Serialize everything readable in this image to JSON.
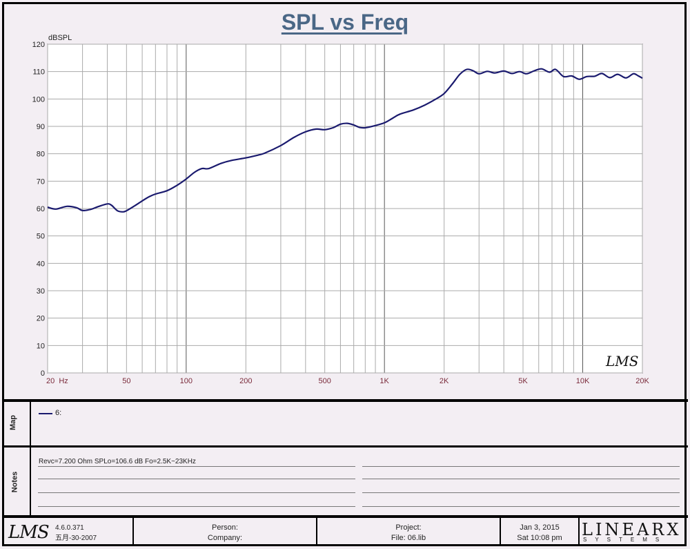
{
  "title": "SPL vs Freq",
  "chart_data": {
    "type": "line",
    "title": "SPL vs Freq",
    "ylabel": "dBSPL",
    "xlabel": "",
    "xscale": "log",
    "xlim": [
      20,
      20000
    ],
    "ylim": [
      0,
      120
    ],
    "yticks": [
      0,
      10,
      20,
      30,
      40,
      50,
      60,
      70,
      80,
      90,
      100,
      110,
      120
    ],
    "xtick_values": [
      20,
      50,
      100,
      200,
      500,
      1000,
      2000,
      5000,
      10000,
      20000
    ],
    "xtick_labels": [
      "20  Hz",
      "50",
      "100",
      "200",
      "500",
      "1K",
      "2K",
      "5K",
      "10K",
      "20K"
    ],
    "grid": true,
    "series": [
      {
        "name": "6:",
        "color": "#1a1a6e",
        "x": [
          20,
          22,
          25,
          28,
          30,
          33,
          36,
          40,
          42,
          45,
          48,
          50,
          55,
          60,
          65,
          70,
          80,
          90,
          100,
          110,
          120,
          130,
          150,
          170,
          200,
          230,
          250,
          300,
          350,
          400,
          450,
          500,
          550,
          600,
          650,
          700,
          750,
          800,
          900,
          1000,
          1100,
          1200,
          1400,
          1600,
          1800,
          2000,
          2200,
          2400,
          2600,
          2800,
          3000,
          3300,
          3600,
          4000,
          4400,
          4800,
          5200,
          5700,
          6200,
          6800,
          7300,
          8000,
          8800,
          9600,
          10500,
          11500,
          12500,
          13700,
          15000,
          16500,
          18000,
          19000,
          20000
        ],
        "y": [
          60.5,
          59.8,
          60.8,
          60.3,
          59.3,
          59.7,
          60.7,
          61.7,
          61.2,
          59.2,
          58.8,
          59.2,
          61,
          62.8,
          64.3,
          65.3,
          66.5,
          68.5,
          70.8,
          73.2,
          74.6,
          74.6,
          76.5,
          77.6,
          78.5,
          79.5,
          80.3,
          83,
          86,
          88,
          89,
          88.8,
          89.5,
          90.8,
          91.1,
          90.5,
          89.6,
          89.5,
          90.3,
          91.3,
          93,
          94.5,
          96,
          97.8,
          99.8,
          102,
          105.5,
          109,
          110.8,
          110.3,
          109.2,
          110.1,
          109.5,
          110.2,
          109.3,
          110,
          109.2,
          110.3,
          111,
          109.8,
          110.8,
          108.2,
          108.4,
          107.2,
          108.2,
          108.3,
          109.3,
          107.8,
          109,
          107.7,
          109.2,
          108.5,
          107.6
        ]
      }
    ],
    "watermark": "LMS"
  },
  "map": {
    "label": "Map",
    "legend": "6:"
  },
  "notes": {
    "label": "Notes",
    "text": "Revc=7.200 Ohm   SPLo=106.6 dB   Fo=2.5K~23KHz"
  },
  "footer": {
    "logo": "LMS",
    "version": "4.6.0.371",
    "date": "五月-30-2007",
    "person": "Person:",
    "company": "Company:",
    "project": "Project:",
    "file": "File:   06.lib",
    "run_date": "Jan  3, 2015",
    "run_time": "Sat 10:08 pm",
    "brand": "LINEARX",
    "brand_sub": "SYSTEMS"
  }
}
